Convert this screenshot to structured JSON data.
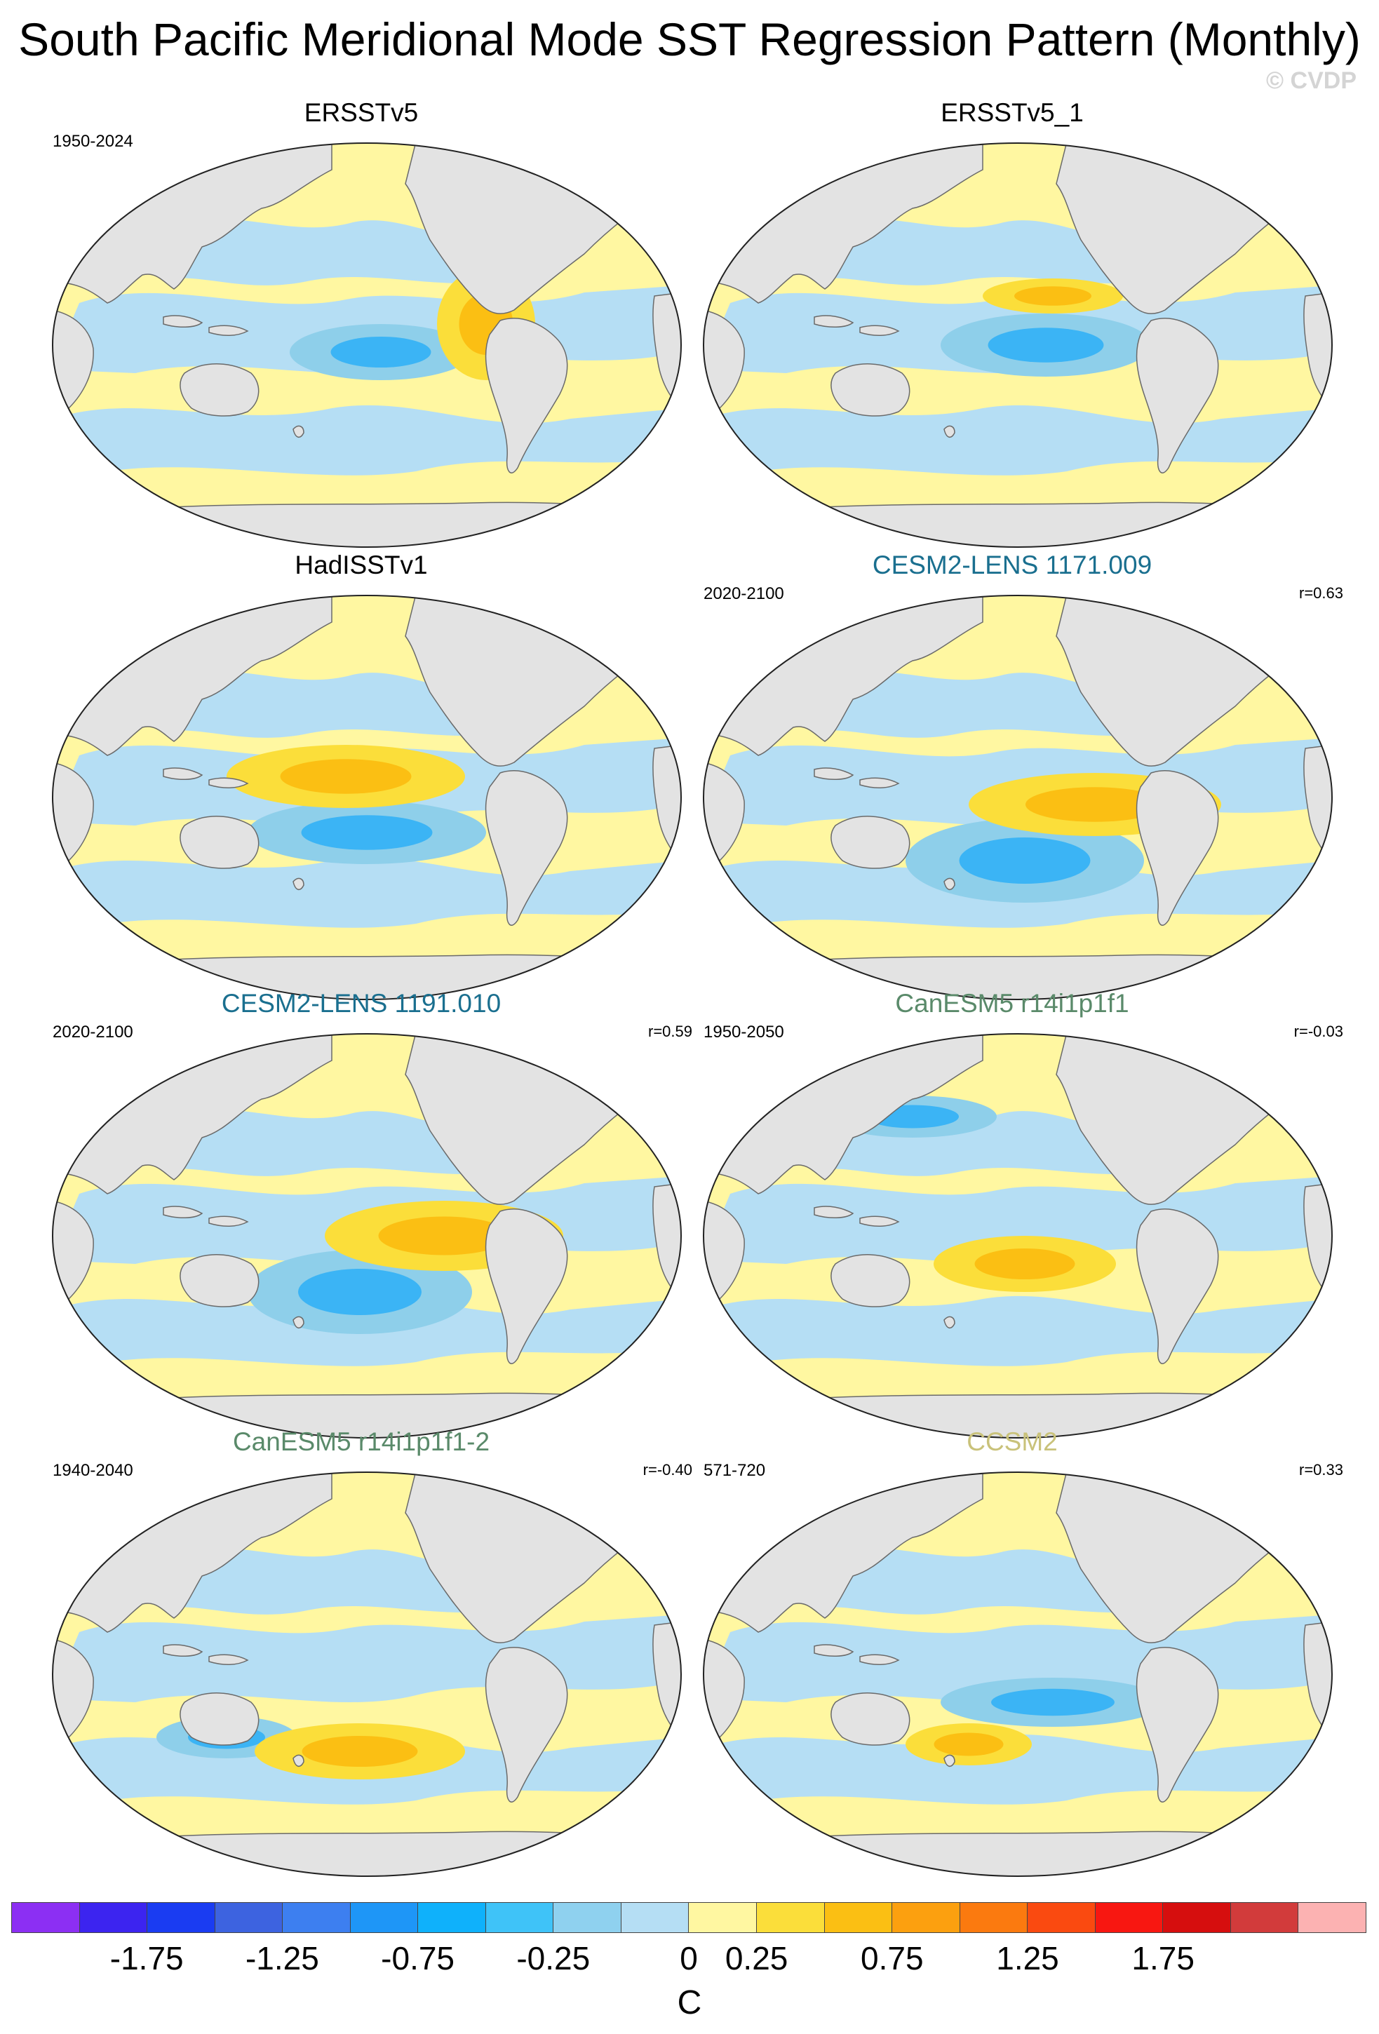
{
  "figure": {
    "title": "South Pacific Meridional Mode SST Regression Pattern (Monthly)",
    "watermark": "© CVDP",
    "colors": {
      "land": "#e3e3e3",
      "ocean_light_pos": "#fff7a1",
      "ocean_light_neg": "#b5def4",
      "pos_mid": "#fbde3a",
      "pos_strong": "#fbbf13",
      "neg_mid": "#8ecfea",
      "neg_strong": "#3bb4f5"
    }
  },
  "panels": [
    {
      "title": "ERSSTv5",
      "title_color": "#000000",
      "period": "1950-2024",
      "corr": ""
    },
    {
      "title": "ERSSTv5_1",
      "title_color": "#000000",
      "period": "",
      "corr": ""
    },
    {
      "title": "HadISSTv1",
      "title_color": "#000000",
      "period": "",
      "corr": ""
    },
    {
      "title": "CESM2-LENS 1171.009",
      "title_color": "#1a6f8f",
      "period": "2020-2100",
      "corr": "r=0.63"
    },
    {
      "title": "CESM2-LENS 1191.010",
      "title_color": "#1a6f8f",
      "period": "2020-2100",
      "corr": "r=0.59"
    },
    {
      "title": "CanESM5 r14i1p1f1",
      "title_color": "#5a8a6a",
      "period": "1950-2050",
      "corr": "r=-0.03"
    },
    {
      "title": "CanESM5 r14i1p1f1-2",
      "title_color": "#5a8a6a",
      "period": "1940-2040",
      "corr": "r=-0.40"
    },
    {
      "title": "CCSM2",
      "title_color": "#c9c27a",
      "period": "571-720",
      "corr": "r=0.33"
    }
  ],
  "colorbar": {
    "colors": [
      "#8c2ff3",
      "#3c24f0",
      "#1a3cf2",
      "#3d63e0",
      "#3d7ff0",
      "#1e96f7",
      "#0fb1fb",
      "#3fc3f8",
      "#8fd1ef",
      "#b5def4",
      "#fff7a1",
      "#fbde3a",
      "#fbbf13",
      "#fca00f",
      "#fb7a0f",
      "#fa4a10",
      "#f81711",
      "#d60e0e",
      "#d23b3b",
      "#fcb2b2"
    ],
    "ticks": [
      "-1.75",
      "-1.25",
      "-0.75",
      "-0.25",
      "0",
      "0.25",
      "0.75",
      "1.25",
      "1.75"
    ],
    "unit": "C"
  }
}
